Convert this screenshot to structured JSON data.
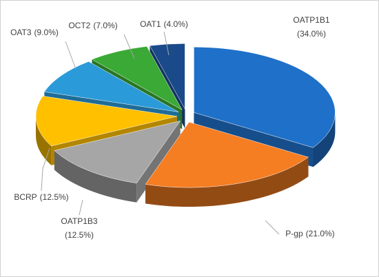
{
  "chart_data": {
    "type": "pie3d",
    "categories": [
      "OATP1B1",
      "P-gp",
      "OATP1B3",
      "BCRP",
      "OAT3",
      "OCT2",
      "OAT1"
    ],
    "values": [
      34,
      21,
      12.5,
      12.5,
      9,
      7,
      4
    ],
    "value_labels": [
      "(34.0%)",
      "(21.0%)",
      "(12.5%)",
      "(12.5%)",
      "(9.0%)",
      "(7.0%)",
      "(4.0%)"
    ],
    "colors": [
      "#1f70c8",
      "#f57d22",
      "#a6a6a6",
      "#ffc000",
      "#2b9ad8",
      "#3aa935",
      "#1a4a8a"
    ]
  }
}
